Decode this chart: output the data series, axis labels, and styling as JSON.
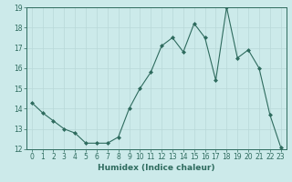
{
  "x": [
    0,
    1,
    2,
    3,
    4,
    5,
    6,
    7,
    8,
    9,
    10,
    11,
    12,
    13,
    14,
    15,
    16,
    17,
    18,
    19,
    20,
    21,
    22,
    23
  ],
  "y": [
    14.3,
    13.8,
    13.4,
    13.0,
    12.8,
    12.3,
    12.3,
    12.3,
    12.6,
    14.0,
    15.0,
    15.8,
    17.1,
    17.5,
    16.8,
    18.2,
    17.5,
    15.4,
    19.0,
    16.5,
    16.9,
    16.0,
    13.7,
    12.1
  ],
  "line_color": "#2e6b5e",
  "marker": "D",
  "marker_size": 2.0,
  "bg_color": "#cceaea",
  "grid_color": "#b8d8d8",
  "xlabel": "Humidex (Indice chaleur)",
  "ylim": [
    12,
    19
  ],
  "xlim": [
    -0.5,
    23.5
  ],
  "yticks": [
    12,
    13,
    14,
    15,
    16,
    17,
    18,
    19
  ],
  "xticks": [
    0,
    1,
    2,
    3,
    4,
    5,
    6,
    7,
    8,
    9,
    10,
    11,
    12,
    13,
    14,
    15,
    16,
    17,
    18,
    19,
    20,
    21,
    22,
    23
  ],
  "tick_label_fontsize": 5.5,
  "xlabel_fontsize": 6.5,
  "linewidth": 0.8
}
